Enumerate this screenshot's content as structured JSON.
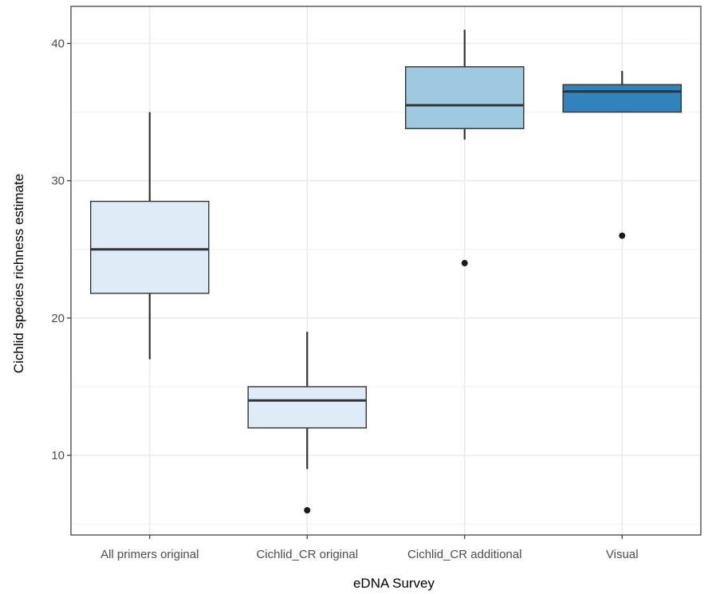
{
  "chart_data": {
    "type": "boxplot",
    "title": "",
    "xlabel": "eDNA Survey",
    "ylabel": "Cichlid species richness estimate",
    "ylim": [
      4.2,
      42.7
    ],
    "yticks": [
      10,
      20,
      30,
      40
    ],
    "yticklabels": [
      "10",
      "20",
      "30",
      "40"
    ],
    "grid": true,
    "categories": [
      "All primers original",
      "Cichlid_CR original",
      "Cichlid_CR additional",
      "Visual"
    ],
    "boxes": [
      {
        "category": "All primers original",
        "whisker_low": 17,
        "q1": 21.8,
        "median": 25,
        "q3": 28.5,
        "whisker_high": 35,
        "outliers": [],
        "fill": "#deebf7"
      },
      {
        "category": "Cichlid_CR original",
        "whisker_low": 9,
        "q1": 12,
        "median": 14,
        "q3": 15,
        "whisker_high": 19,
        "outliers": [
          6
        ],
        "fill": "#deebf7"
      },
      {
        "category": "Cichlid_CR additional",
        "whisker_low": 33,
        "q1": 33.8,
        "median": 35.5,
        "q3": 38.3,
        "whisker_high": 41,
        "outliers": [
          24
        ],
        "fill": "#9ecae1"
      },
      {
        "category": "Visual",
        "whisker_low": 35,
        "q1": 35,
        "median": 36.5,
        "q3": 37,
        "whisker_high": 38,
        "outliers": [
          26
        ],
        "fill": "#3182bd"
      }
    ]
  }
}
